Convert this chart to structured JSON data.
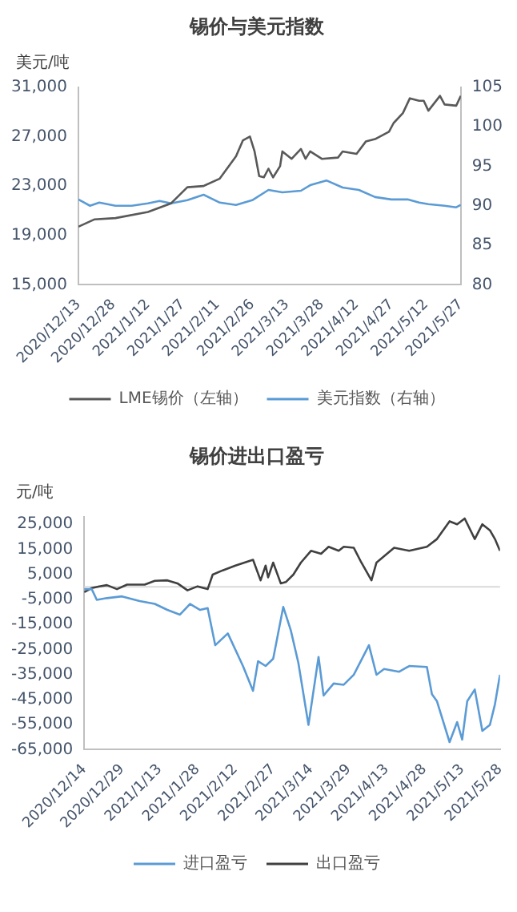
{
  "chart_data": [
    {
      "type": "line",
      "title": "锡价与美元指数",
      "ylabel": "美元/吨",
      "marker": "none",
      "legend": "bottom",
      "grid": false,
      "xlim": [
        "2020-12-13",
        "2021-05-27"
      ],
      "xticks": [
        {
          "value": "2020-12-13",
          "label": "2020/12/13"
        },
        {
          "value": "2020-12-28",
          "label": "2020/12/28"
        },
        {
          "value": "2021-01-12",
          "label": "2021/1/12"
        },
        {
          "value": "2021-01-27",
          "label": "2021/1/27"
        },
        {
          "value": "2021-02-11",
          "label": "2021/2/11"
        },
        {
          "value": "2021-02-26",
          "label": "2021/2/26"
        },
        {
          "value": "2021-03-13",
          "label": "2021/3/13"
        },
        {
          "value": "2021-03-28",
          "label": "2021/3/28"
        },
        {
          "value": "2021-04-12",
          "label": "2021/4/12"
        },
        {
          "value": "2021-04-27",
          "label": "2021/4/27"
        },
        {
          "value": "2021-05-12",
          "label": "2021/5/12"
        },
        {
          "value": "2021-05-27",
          "label": "2021/5/27"
        }
      ],
      "ylim": [
        15000,
        31000
      ],
      "yticks": [
        {
          "value": 15000,
          "label": "15,000"
        },
        {
          "value": 19000,
          "label": "19,000"
        },
        {
          "value": 23000,
          "label": "23,000"
        },
        {
          "value": 27000,
          "label": "27,000"
        },
        {
          "value": 31000,
          "label": "31,000"
        }
      ],
      "y2lim": [
        80,
        105
      ],
      "y2ticks": [
        80,
        85,
        90,
        95,
        100,
        105
      ],
      "series": [
        {
          "name": "LME锡价（左轴）",
          "color": "#595959",
          "x": [
            "2020-12-13",
            "2020-12-20",
            "2020-12-29",
            "2021-01-12",
            "2021-01-22",
            "2021-01-29",
            "2021-02-05",
            "2021-02-12",
            "2021-02-19",
            "2021-02-22",
            "2021-02-25",
            "2021-02-27",
            "2021-03-01",
            "2021-03-03",
            "2021-03-05",
            "2021-03-07",
            "2021-03-10",
            "2021-03-11",
            "2021-03-15",
            "2021-03-19",
            "2021-03-21",
            "2021-03-23",
            "2021-03-28",
            "2021-04-04",
            "2021-04-06",
            "2021-04-12",
            "2021-04-16",
            "2021-04-20",
            "2021-04-26",
            "2021-04-28",
            "2021-05-02",
            "2021-05-05",
            "2021-05-09",
            "2021-05-11",
            "2021-05-13",
            "2021-05-18",
            "2021-05-20",
            "2021-05-25",
            "2021-05-27"
          ],
          "values": [
            19700,
            20300,
            20400,
            20900,
            21600,
            22900,
            23000,
            23600,
            25400,
            26700,
            27000,
            25800,
            23800,
            23700,
            24400,
            23700,
            24600,
            25800,
            25200,
            26000,
            25200,
            25800,
            25200,
            25300,
            25800,
            25600,
            26600,
            26800,
            27400,
            28100,
            28900,
            30100,
            29900,
            29900,
            29100,
            30300,
            29600,
            29500,
            30300
          ]
        },
        {
          "name": "美元指数（右轴）",
          "color": "#5b9bd5",
          "axis": "y2",
          "x": [
            "2020-12-13",
            "2020-12-18",
            "2020-12-22",
            "2020-12-29",
            "2021-01-05",
            "2021-01-12",
            "2021-01-17",
            "2021-01-22",
            "2021-01-29",
            "2021-02-05",
            "2021-02-12",
            "2021-02-19",
            "2021-02-26",
            "2021-03-05",
            "2021-03-11",
            "2021-03-19",
            "2021-03-23",
            "2021-03-30",
            "2021-04-06",
            "2021-04-13",
            "2021-04-20",
            "2021-04-27",
            "2021-05-04",
            "2021-05-09",
            "2021-05-13",
            "2021-05-20",
            "2021-05-25",
            "2021-05-27"
          ],
          "values": [
            90.8,
            90.0,
            90.4,
            90.0,
            90.0,
            90.3,
            90.6,
            90.3,
            90.7,
            91.4,
            90.4,
            90.1,
            90.7,
            92.0,
            91.7,
            91.9,
            92.6,
            93.2,
            92.3,
            92.0,
            91.1,
            90.8,
            90.8,
            90.4,
            90.2,
            90.0,
            89.8,
            90.1
          ]
        }
      ]
    },
    {
      "type": "line",
      "title": "锡价进出口盈亏",
      "ylabel": "元/吨",
      "marker": "none",
      "legend": "bottom",
      "grid": false,
      "xlim": [
        "2020-12-14",
        "2021-05-28"
      ],
      "xticks": [
        {
          "value": "2020-12-14",
          "label": "2020/12/14"
        },
        {
          "value": "2020-12-29",
          "label": "2020/12/29"
        },
        {
          "value": "2021-01-13",
          "label": "2021/1/13"
        },
        {
          "value": "2021-01-28",
          "label": "2021/1/28"
        },
        {
          "value": "2021-02-12",
          "label": "2021/2/12"
        },
        {
          "value": "2021-02-27",
          "label": "2021/2/27"
        },
        {
          "value": "2021-03-14",
          "label": "2021/3/14"
        },
        {
          "value": "2021-03-29",
          "label": "2021/3/29"
        },
        {
          "value": "2021-04-13",
          "label": "2021/4/13"
        },
        {
          "value": "2021-04-28",
          "label": "2021/4/28"
        },
        {
          "value": "2021-05-13",
          "label": "2021/5/13"
        },
        {
          "value": "2021-05-28",
          "label": "2021/5/28"
        }
      ],
      "ylim": [
        -65000,
        28000
      ],
      "yticks": [
        {
          "value": -65000,
          "label": "-65,000"
        },
        {
          "value": -55000,
          "label": "-55,000"
        },
        {
          "value": -45000,
          "label": "-45,000"
        },
        {
          "value": -35000,
          "label": "-35,000"
        },
        {
          "value": -25000,
          "label": "-25,000"
        },
        {
          "value": -15000,
          "label": "-15,000"
        },
        {
          "value": -5000,
          "label": "-5,000"
        },
        {
          "value": 5000,
          "label": "5,000"
        },
        {
          "value": 15000,
          "label": "15,000"
        },
        {
          "value": 25000,
          "label": "25,000"
        }
      ],
      "ref_lines": [
        {
          "axis": "y",
          "value": 0,
          "color": "#d9d9d9"
        }
      ],
      "series": [
        {
          "name": "进口盈亏",
          "color": "#5b9bd5",
          "x": [
            "2020-12-14",
            "2020-12-17",
            "2020-12-19",
            "2020-12-23",
            "2020-12-29",
            "2021-01-05",
            "2021-01-11",
            "2021-01-16",
            "2021-01-21",
            "2021-01-25",
            "2021-01-29",
            "2021-02-01",
            "2021-02-04",
            "2021-02-09",
            "2021-02-15",
            "2021-02-19",
            "2021-02-21",
            "2021-02-24",
            "2021-02-27",
            "2021-03-03",
            "2021-03-06",
            "2021-03-09",
            "2021-03-13",
            "2021-03-17",
            "2021-03-19",
            "2021-03-23",
            "2021-03-27",
            "2021-03-31",
            "2021-04-06",
            "2021-04-09",
            "2021-04-12",
            "2021-04-18",
            "2021-04-22",
            "2021-04-29",
            "2021-05-01",
            "2021-05-03",
            "2021-05-08",
            "2021-05-11",
            "2021-05-13",
            "2021-05-15",
            "2021-05-18",
            "2021-05-21",
            "2021-05-24",
            "2021-05-26",
            "2021-05-28"
          ],
          "values": [
            -900,
            -900,
            -5200,
            -4500,
            -3800,
            -5700,
            -6800,
            -9200,
            -11100,
            -6800,
            -9200,
            -8500,
            -23300,
            -18600,
            -31600,
            -41500,
            -29700,
            -31600,
            -28700,
            -8000,
            -17400,
            -30400,
            -55100,
            -28000,
            -43400,
            -38600,
            -39100,
            -35100,
            -23300,
            -35100,
            -32800,
            -33900,
            -31600,
            -32000,
            -42900,
            -45700,
            -62000,
            -54000,
            -61000,
            -45700,
            -41000,
            -57500,
            -55100,
            -46900,
            -35100
          ]
        },
        {
          "name": "出口盈亏",
          "color": "#404040",
          "x": [
            "2020-12-14",
            "2020-12-17",
            "2020-12-20",
            "2020-12-23",
            "2020-12-27",
            "2020-12-31",
            "2021-01-07",
            "2021-01-11",
            "2021-01-16",
            "2021-01-20",
            "2021-01-24",
            "2021-01-28",
            "2021-02-01",
            "2021-02-03",
            "2021-02-07",
            "2021-02-12",
            "2021-02-19",
            "2021-02-22",
            "2021-02-24",
            "2021-02-25",
            "2021-02-27",
            "2021-03-02",
            "2021-03-04",
            "2021-03-07",
            "2021-03-10",
            "2021-03-14",
            "2021-03-18",
            "2021-03-21",
            "2021-03-25",
            "2021-03-27",
            "2021-03-31",
            "2021-04-03",
            "2021-04-07",
            "2021-04-09",
            "2021-04-16",
            "2021-04-22",
            "2021-04-29",
            "2021-05-03",
            "2021-05-08",
            "2021-05-11",
            "2021-05-14",
            "2021-05-18",
            "2021-05-21",
            "2021-05-24",
            "2021-05-26",
            "2021-05-28"
          ],
          "values": [
            -2100,
            -500,
            200,
            700,
            -900,
            900,
            900,
            2400,
            2600,
            1400,
            -1400,
            200,
            -900,
            4900,
            6600,
            8500,
            10800,
            2600,
            8500,
            3800,
            9700,
            1400,
            1900,
            4900,
            9700,
            14400,
            13200,
            16000,
            14400,
            16000,
            15600,
            9700,
            2600,
            9700,
            15600,
            14400,
            16000,
            19100,
            26200,
            25000,
            27300,
            19100,
            25000,
            22600,
            19100,
            14400
          ]
        }
      ]
    }
  ]
}
